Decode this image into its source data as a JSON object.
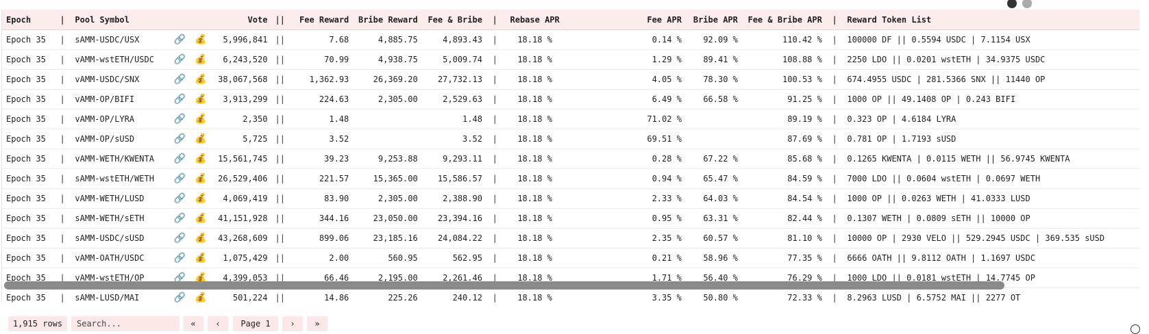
{
  "table": {
    "columns": [
      "Epoch",
      "|",
      "Pool Symbol",
      "",
      "",
      "Vote",
      "||",
      "Fee Reward",
      "Bribe Reward",
      "Fee & Bribe",
      "|",
      "Rebase APR",
      "Fee APR",
      "Bribe APR",
      "Fee & Bribe APR",
      "|",
      "Reward Token List"
    ],
    "rows": [
      {
        "epoch": "Epoch 35",
        "pool": "sAMM-USDC/USX",
        "vote": "5,996,841",
        "fee": "7.68",
        "bribe": "4,885.75",
        "feebribe": "4,893.43",
        "rebase": "18.18 %",
        "feeapr": "0.14 %",
        "bribeapr": "92.09 %",
        "fbapr": "110.42 %",
        "tokens": "100000 DF || 0.5594 USDC | 7.1154 USX"
      },
      {
        "epoch": "Epoch 35",
        "pool": "vAMM-wstETH/USDC",
        "vote": "6,243,520",
        "fee": "70.99",
        "bribe": "4,938.75",
        "feebribe": "5,009.74",
        "rebase": "18.18 %",
        "feeapr": "1.29 %",
        "bribeapr": "89.41 %",
        "fbapr": "108.88 %",
        "tokens": "2250 LDO || 0.0201 wstETH | 34.9375 USDC"
      },
      {
        "epoch": "Epoch 35",
        "pool": "vAMM-USDC/SNX",
        "vote": "38,067,568",
        "fee": "1,362.93",
        "bribe": "26,369.20",
        "feebribe": "27,732.13",
        "rebase": "18.18 %",
        "feeapr": "4.05 %",
        "bribeapr": "78.30 %",
        "fbapr": "100.53 %",
        "tokens": "674.4955 USDC | 281.5366 SNX || 11440 OP"
      },
      {
        "epoch": "Epoch 35",
        "pool": "vAMM-OP/BIFI",
        "vote": "3,913,299",
        "fee": "224.63",
        "bribe": "2,305.00",
        "feebribe": "2,529.63",
        "rebase": "18.18 %",
        "feeapr": "6.49 %",
        "bribeapr": "66.58 %",
        "fbapr": "91.25 %",
        "tokens": "1000 OP || 49.1408 OP | 0.243 BIFI"
      },
      {
        "epoch": "Epoch 35",
        "pool": "vAMM-OP/LYRA",
        "vote": "2,350",
        "fee": "1.48",
        "bribe": "",
        "feebribe": "1.48",
        "rebase": "18.18 %",
        "feeapr": "71.02 %",
        "bribeapr": "",
        "fbapr": "89.19 %",
        "tokens": "0.323 OP | 4.6184 LYRA"
      },
      {
        "epoch": "Epoch 35",
        "pool": "vAMM-OP/sUSD",
        "vote": "5,725",
        "fee": "3.52",
        "bribe": "",
        "feebribe": "3.52",
        "rebase": "18.18 %",
        "feeapr": "69.51 %",
        "bribeapr": "",
        "fbapr": "87.69 %",
        "tokens": "0.781 OP | 1.7193 sUSD"
      },
      {
        "epoch": "Epoch 35",
        "pool": "vAMM-WETH/KWENTA",
        "vote": "15,561,745",
        "fee": "39.23",
        "bribe": "9,253.88",
        "feebribe": "9,293.11",
        "rebase": "18.18 %",
        "feeapr": "0.28 %",
        "bribeapr": "67.22 %",
        "fbapr": "85.68 %",
        "tokens": "0.1265 KWENTA | 0.0115 WETH || 56.9745 KWENTA"
      },
      {
        "epoch": "Epoch 35",
        "pool": "sAMM-wstETH/WETH",
        "vote": "26,529,406",
        "fee": "221.57",
        "bribe": "15,365.00",
        "feebribe": "15,586.57",
        "rebase": "18.18 %",
        "feeapr": "0.94 %",
        "bribeapr": "65.47 %",
        "fbapr": "84.59 %",
        "tokens": "7000 LDO || 0.0604 wstETH | 0.0697 WETH"
      },
      {
        "epoch": "Epoch 35",
        "pool": "vAMM-WETH/LUSD",
        "vote": "4,069,419",
        "fee": "83.90",
        "bribe": "2,305.00",
        "feebribe": "2,388.90",
        "rebase": "18.18 %",
        "feeapr": "2.33 %",
        "bribeapr": "64.03 %",
        "fbapr": "84.54 %",
        "tokens": "1000 OP || 0.0263 WETH | 41.0333 LUSD"
      },
      {
        "epoch": "Epoch 35",
        "pool": "sAMM-WETH/sETH",
        "vote": "41,151,928",
        "fee": "344.16",
        "bribe": "23,050.00",
        "feebribe": "23,394.16",
        "rebase": "18.18 %",
        "feeapr": "0.95 %",
        "bribeapr": "63.31 %",
        "fbapr": "82.44 %",
        "tokens": "0.1307 WETH | 0.0809 sETH || 10000 OP"
      },
      {
        "epoch": "Epoch 35",
        "pool": "sAMM-USDC/sUSD",
        "vote": "43,268,609",
        "fee": "899.06",
        "bribe": "23,185.16",
        "feebribe": "24,084.22",
        "rebase": "18.18 %",
        "feeapr": "2.35 %",
        "bribeapr": "60.57 %",
        "fbapr": "81.10 %",
        "tokens": "10000 OP | 2930 VELO || 529.2945 USDC | 369.535 sUSD"
      },
      {
        "epoch": "Epoch 35",
        "pool": "vAMM-OATH/USDC",
        "vote": "1,075,429",
        "fee": "2.00",
        "bribe": "560.95",
        "feebribe": "562.95",
        "rebase": "18.18 %",
        "feeapr": "0.21 %",
        "bribeapr": "58.96 %",
        "fbapr": "77.35 %",
        "tokens": "6666 OATH || 9.8112 OATH | 1.1697 USDC"
      },
      {
        "epoch": "Epoch 35",
        "pool": "vAMM-wstETH/OP",
        "vote": "4,399,053",
        "fee": "66.46",
        "bribe": "2,195.00",
        "feebribe": "2,261.46",
        "rebase": "18.18 %",
        "feeapr": "1.71 %",
        "bribeapr": "56.40 %",
        "fbapr": "76.29 %",
        "tokens": "1000 LDO || 0.0181 wstETH | 14.7745 OP"
      },
      {
        "epoch": "Epoch 35",
        "pool": "sAMM-LUSD/MAI",
        "vote": "501,224",
        "fee": "14.86",
        "bribe": "225.26",
        "feebribe": "240.12",
        "rebase": "18.18 %",
        "feeapr": "3.35 %",
        "bribeapr": "50.80 %",
        "fbapr": "72.33 %",
        "tokens": "8.2963 LUSD | 6.5752 MAI || 2277 OT"
      }
    ]
  },
  "footer": {
    "rows_label": "1,915 rows",
    "search_placeholder": "Search...",
    "first_label": "«",
    "prev_label": "‹",
    "page_label": "Page 1",
    "next_label": "›",
    "last_label": "»"
  },
  "icons": {
    "link": "link-icon",
    "bag": "money-bag-icon"
  }
}
